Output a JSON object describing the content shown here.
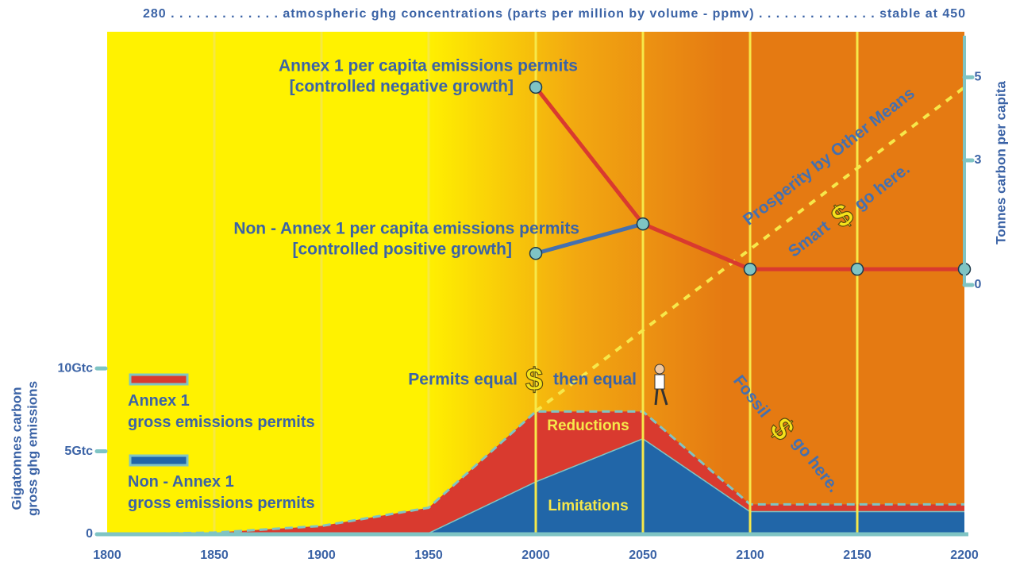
{
  "chart_data": {
    "type": "area",
    "stacked": true,
    "title": "280 . . . . . . . . . . . . . atmospheric ghg concentrations (parts per million by volume - ppmv) . . . . . . . . . . . . . . stable at 450",
    "y_label": [
      "Gigatonnes carbon",
      "gross ghg emissions"
    ],
    "y2_label": "Tonnes carbon per capita",
    "x": [
      1800,
      1850,
      1900,
      1950,
      2000,
      2050,
      2100,
      2150,
      2200
    ],
    "xlim": [
      1800,
      2200
    ],
    "xticks": [
      1800,
      1850,
      1900,
      1950,
      2000,
      2050,
      2100,
      2150,
      2200
    ],
    "ylim": [
      0,
      30.3
    ],
    "yticks": [
      0,
      {
        "value": 5,
        "label": "5Gtc"
      },
      {
        "value": 10,
        "label": "10Gtc"
      }
    ],
    "y2lim": [
      0,
      6
    ],
    "y2ticks": [
      0,
      3,
      5
    ],
    "grid": true,
    "series": [
      {
        "name": "Annex 1\ngross emissions permits",
        "color": "#d93a2f",
        "values": [
          0,
          0.1,
          0.5,
          1.5,
          4.2,
          1.6,
          0.4,
          0.4,
          0.4
        ]
      },
      {
        "name": "Non - Annex 1\ngross emissions permits",
        "color": "#2166a8",
        "values": [
          0,
          0,
          0,
          0.1,
          3.2,
          5.8,
          1.4,
          1.4,
          1.4
        ]
      },
      {
        "name": "Annex 1 per capita emissions permits",
        "color": "#d93a2f",
        "axis": "y2",
        "values": [
          null,
          null,
          null,
          null,
          4.76,
          1.47,
          0.38,
          0.38,
          0.38
        ]
      },
      {
        "name": "Non - Annex 1 per capita emissions permits",
        "color": "#4470b0",
        "axis": "y2",
        "values": [
          null,
          null,
          null,
          null,
          0.76,
          1.47,
          null,
          null,
          null
        ]
      }
    ],
    "annotations": [
      "[controlled negative growth]",
      "[controlled positive growth]",
      "Permits equal",
      "$",
      "then equal",
      "Reductions",
      "Limitations",
      "Prosperity by Other Means",
      "Smart",
      "$",
      "go here.",
      "Fossil",
      "$",
      "go here."
    ]
  }
}
